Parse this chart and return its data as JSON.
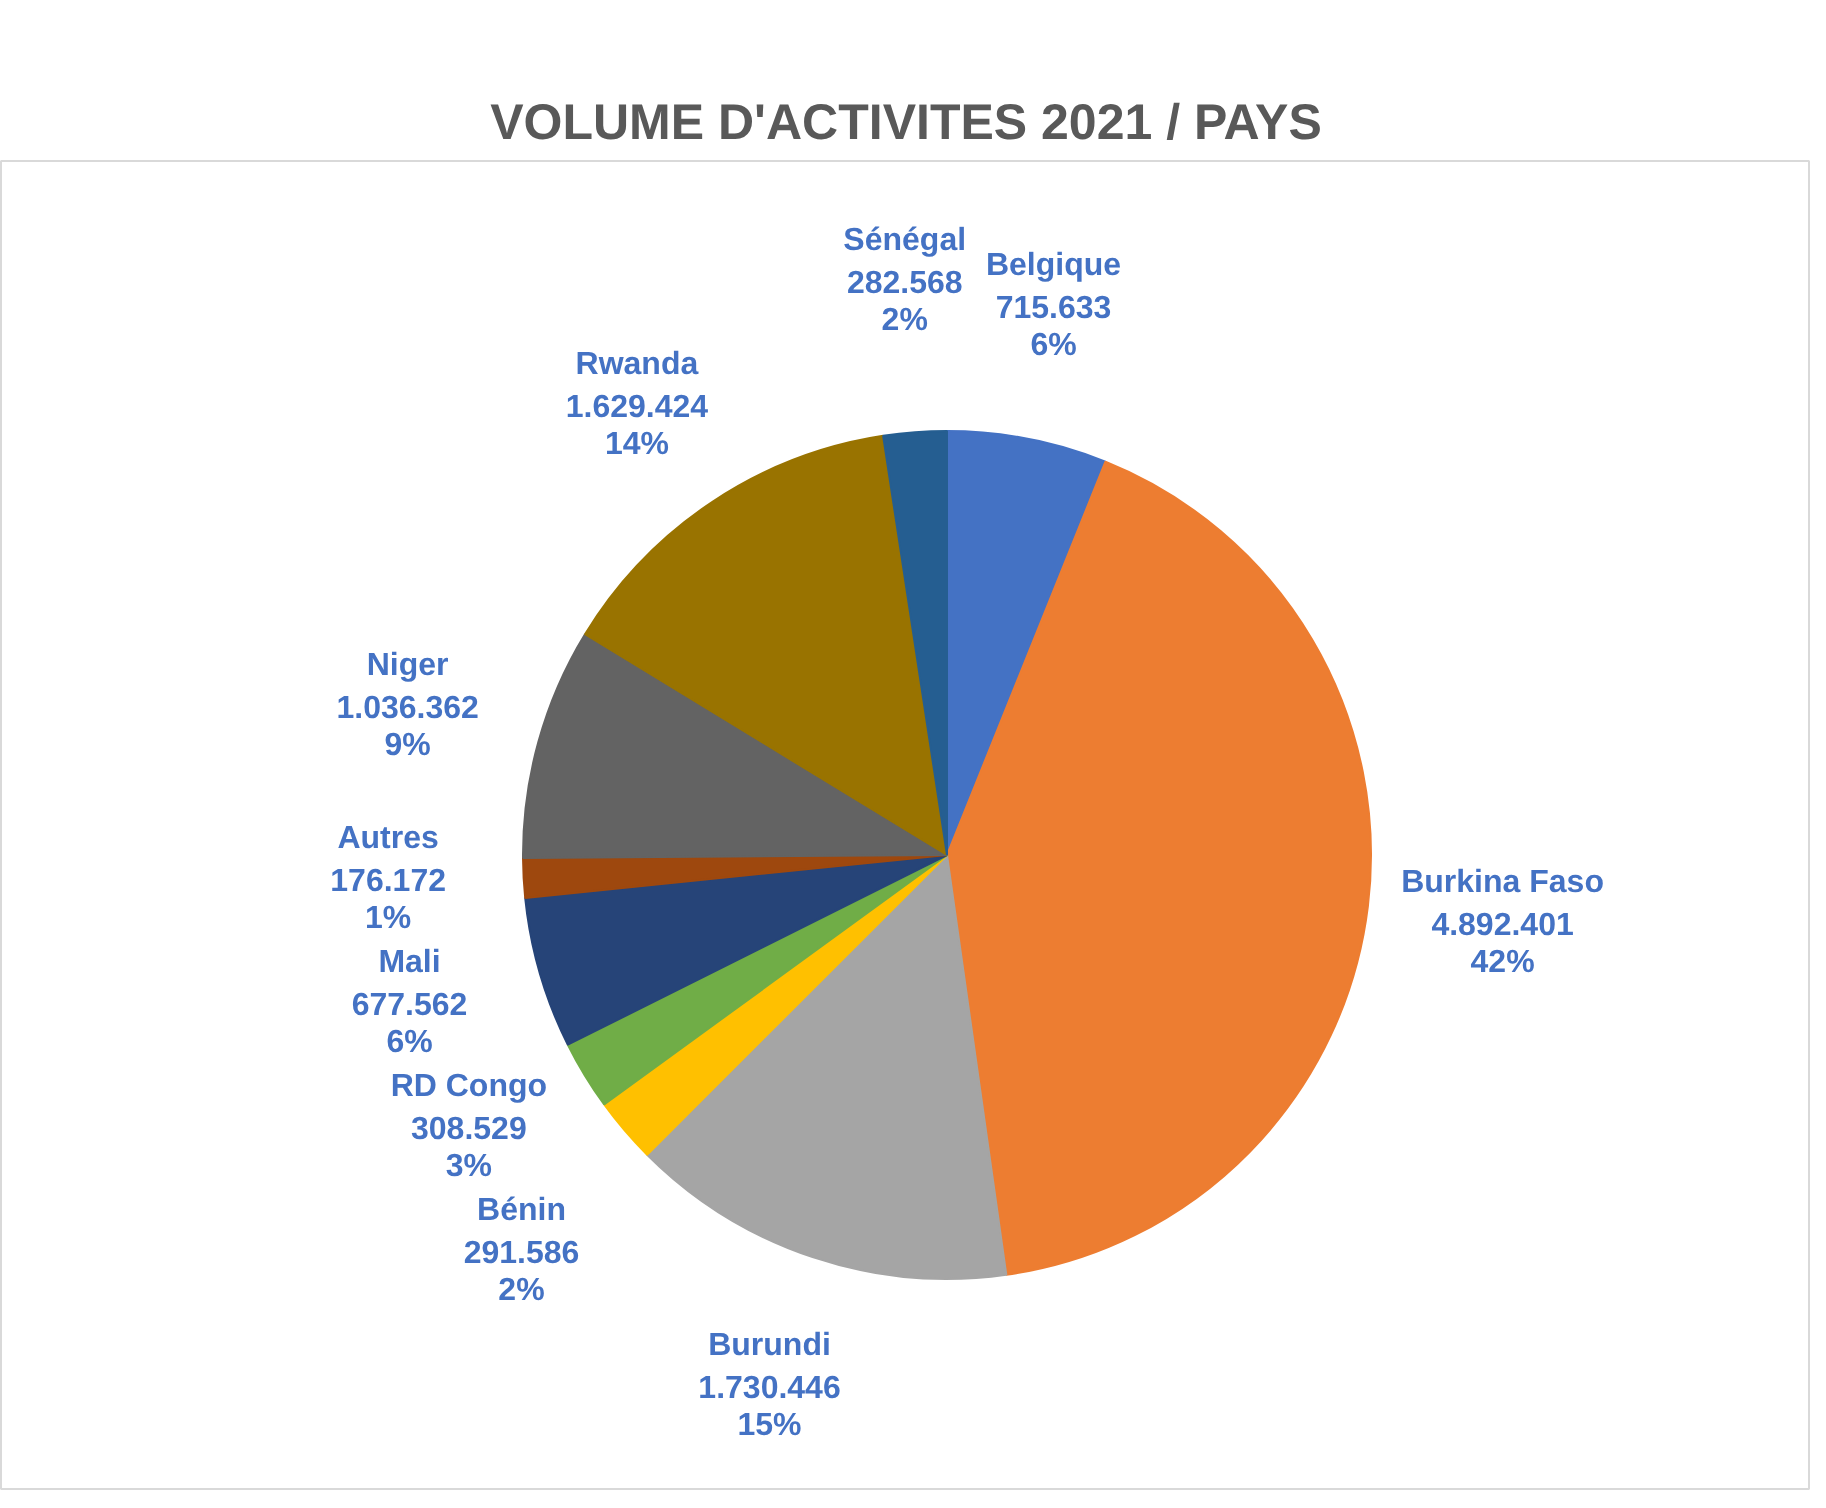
{
  "chart_data": {
    "type": "pie",
    "title": "VOLUME D'ACTIVITES 2021 / PAYS",
    "categories": [
      "Belgique",
      "Burkina Faso",
      "Burundi",
      "Bénin",
      "RD Congo",
      "Mali",
      "Autres",
      "Niger",
      "Rwanda",
      "Sénégal"
    ],
    "values": [
      715633,
      4892401,
      1730446,
      291586,
      308529,
      677562,
      176172,
      1036362,
      1629424,
      282568
    ],
    "value_labels": [
      "715.633\n6%",
      "4.892.401\n42%",
      "1.730.446\n15%",
      "291.586\n2%",
      "308.529\n3%",
      "677.562\n6%",
      "176.172\n1%",
      "1.036.362\n9%",
      "1.629.424\n14%",
      "282.568\n2%"
    ],
    "colors": [
      "#4472c4",
      "#ed7d31",
      "#a5a5a5",
      "#ffc000",
      "#70ad47",
      "#264478",
      "#9e480e",
      "#636363",
      "#997300",
      "#255e91"
    ]
  }
}
